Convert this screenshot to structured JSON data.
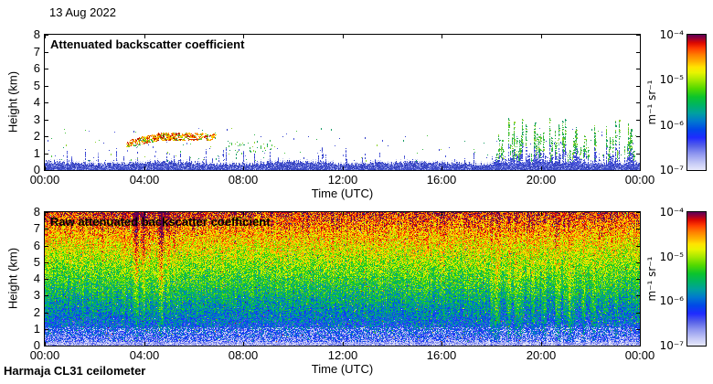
{
  "header": {
    "date_label": "13 Aug 2022"
  },
  "footer": {
    "instrument_label": "Harmaja CL31 ceilometer"
  },
  "colormap": [
    [
      0.0,
      "#e6e8fb"
    ],
    [
      0.05,
      "#c6caf6"
    ],
    [
      0.12,
      "#8f97ef"
    ],
    [
      0.18,
      "#5560e8"
    ],
    [
      0.24,
      "#1f2bff"
    ],
    [
      0.3,
      "#0048e8"
    ],
    [
      0.36,
      "#0078d0"
    ],
    [
      0.42,
      "#00a0a0"
    ],
    [
      0.48,
      "#00b464"
    ],
    [
      0.54,
      "#0cc42c"
    ],
    [
      0.6,
      "#50d800"
    ],
    [
      0.66,
      "#a0e800"
    ],
    [
      0.72,
      "#e8f400"
    ],
    [
      0.76,
      "#ffe400"
    ],
    [
      0.8,
      "#ffb400"
    ],
    [
      0.85,
      "#ff8000"
    ],
    [
      0.9,
      "#ff3c00"
    ],
    [
      0.94,
      "#dc0800"
    ],
    [
      0.97,
      "#9c0030"
    ],
    [
      1.0,
      "#5c0058"
    ]
  ],
  "chart_data": [
    {
      "id": "attenuated-backscatter",
      "type": "heatmap",
      "title": "Attenuated backscatter coefficient",
      "xlabel": "Time (UTC)",
      "ylabel": "Height (km)",
      "x_ticks": [
        "00:00",
        "04:00",
        "08:00",
        "12:00",
        "16:00",
        "20:00",
        "00:00"
      ],
      "x_tick_hours": [
        0,
        4,
        8,
        12,
        16,
        20,
        24
      ],
      "xlim_hours": [
        0,
        24
      ],
      "y_ticks": [
        "0",
        "1",
        "2",
        "3",
        "4",
        "5",
        "6",
        "7",
        "8"
      ],
      "ylim_km": [
        0,
        8
      ],
      "grid": false,
      "colorbar": {
        "scale": "log",
        "range_min": "1e-7",
        "range_max": "1e-4",
        "tick_labels": [
          "10⁻⁴",
          "10⁻⁵",
          "10⁻⁶",
          "10⁻⁷"
        ],
        "units": "m⁻¹ sr⁻¹",
        "position": "right"
      },
      "features": [
        {
          "name": "boundary-layer-aerosol-band",
          "hours": [
            0,
            24
          ],
          "height_km": [
            0,
            0.6
          ],
          "level_m1sr1": "~1e-6 (blue)"
        },
        {
          "name": "cloud-aerosol-layer",
          "hours": [
            3.3,
            6.9
          ],
          "height_km": [
            1.4,
            2.2
          ],
          "level_m1sr1": "~3e-5 (red/orange/yellow)"
        },
        {
          "name": "scattered-echo-dots",
          "hours": [
            0,
            18
          ],
          "height_km": [
            0.5,
            2.5
          ],
          "level_m1sr1": "~1e-6 (blue/green)"
        },
        {
          "name": "shower-spikes",
          "hours": [
            17.9,
            23.75
          ],
          "height_km": [
            0,
            3.2
          ],
          "level_m1sr1": "1e-6 to 1e-5 (blue spikes, green tips)"
        }
      ],
      "render": {
        "seed": 20220813,
        "surface_band_km": [
          0.28,
          0.62
        ],
        "spike_section_hours": [
          17.9,
          23.75
        ],
        "cloud_hours": [
          3.3,
          6.9
        ],
        "cloud_height_km": [
          1.45,
          2.15
        ],
        "palette": {
          "band": [
            "#3f4cc8",
            "#6a76dc",
            "#2a35a8",
            "#9aa2ec",
            "#c6cbf4"
          ],
          "spike": [
            "#2e3cc8",
            "#4450d8",
            "#6a74e0"
          ],
          "green": [
            "#2fb24a",
            "#4cc63e",
            "#169c64",
            "#8fd22e"
          ],
          "cloud": [
            "#a51500",
            "#dd2e00",
            "#ff8a00",
            "#ffc800",
            "#e8e000",
            "#7cc418",
            "#34a83c"
          ]
        }
      }
    },
    {
      "id": "raw-attenuated-backscatter",
      "type": "heatmap",
      "title": "Raw attenuated backscatter coefficient",
      "xlabel": "Time (UTC)",
      "ylabel": "Height (km)",
      "x_ticks": [
        "00:00",
        "04:00",
        "08:00",
        "12:00",
        "16:00",
        "20:00",
        "00:00"
      ],
      "x_tick_hours": [
        0,
        4,
        8,
        12,
        16,
        20,
        24
      ],
      "xlim_hours": [
        0,
        24
      ],
      "y_ticks": [
        "0",
        "1",
        "2",
        "3",
        "4",
        "5",
        "6",
        "7",
        "8"
      ],
      "ylim_km": [
        0,
        8
      ],
      "grid": false,
      "colorbar": {
        "scale": "log",
        "range_min": "1e-7",
        "range_max": "1e-4",
        "tick_labels": [
          "10⁻⁴",
          "10⁻⁵",
          "10⁻⁶",
          "10⁻⁷"
        ],
        "units": "m⁻¹ sr⁻¹",
        "position": "right"
      },
      "features": [
        {
          "name": "range-dependent-noise",
          "desc": "apparent signal rises with height: lavender-white 0-0.5 km, blue 0.5-3 km, green 3-6 km, yellow-orange-red 6-8 km"
        },
        {
          "name": "orange-red-vertical-streaks",
          "hours": [
            3.1,
            5.4
          ],
          "height_km": [
            1,
            8
          ]
        },
        {
          "name": "green-shower-streaks",
          "hours": [
            17.9,
            23.2
          ],
          "height_km": [
            0,
            5
          ]
        },
        {
          "name": "clean-surface-layer",
          "height_km": [
            0,
            0.5
          ],
          "desc": "near-white with speckle"
        }
      ],
      "render": {
        "seed": 813,
        "orange_streaks_hours": [
          [
            3.55,
            3.78,
            0.3
          ],
          [
            3.85,
            4.08,
            0.22
          ],
          [
            4.12,
            4.28,
            0.12
          ],
          [
            4.55,
            4.82,
            0.3
          ],
          [
            4.88,
            5.06,
            0.16
          ],
          [
            3.1,
            3.3,
            0.1
          ],
          [
            5.15,
            5.35,
            0.1
          ],
          [
            6.1,
            6.22,
            0.08
          ],
          [
            2.25,
            2.4,
            0.07
          ]
        ],
        "green_streaks_hours": [
          [
            17.95,
            18.35,
            0.16
          ],
          [
            18.55,
            18.82,
            0.13
          ],
          [
            18.9,
            19.3,
            0.17
          ],
          [
            19.6,
            19.78,
            0.1
          ],
          [
            20.0,
            20.22,
            0.12
          ],
          [
            20.55,
            20.82,
            0.14
          ],
          [
            20.9,
            21.35,
            0.16
          ],
          [
            21.6,
            21.82,
            0.12
          ],
          [
            22.0,
            22.28,
            0.14
          ],
          [
            22.5,
            22.72,
            0.1
          ],
          [
            22.9,
            23.12,
            0.09
          ]
        ]
      }
    }
  ]
}
